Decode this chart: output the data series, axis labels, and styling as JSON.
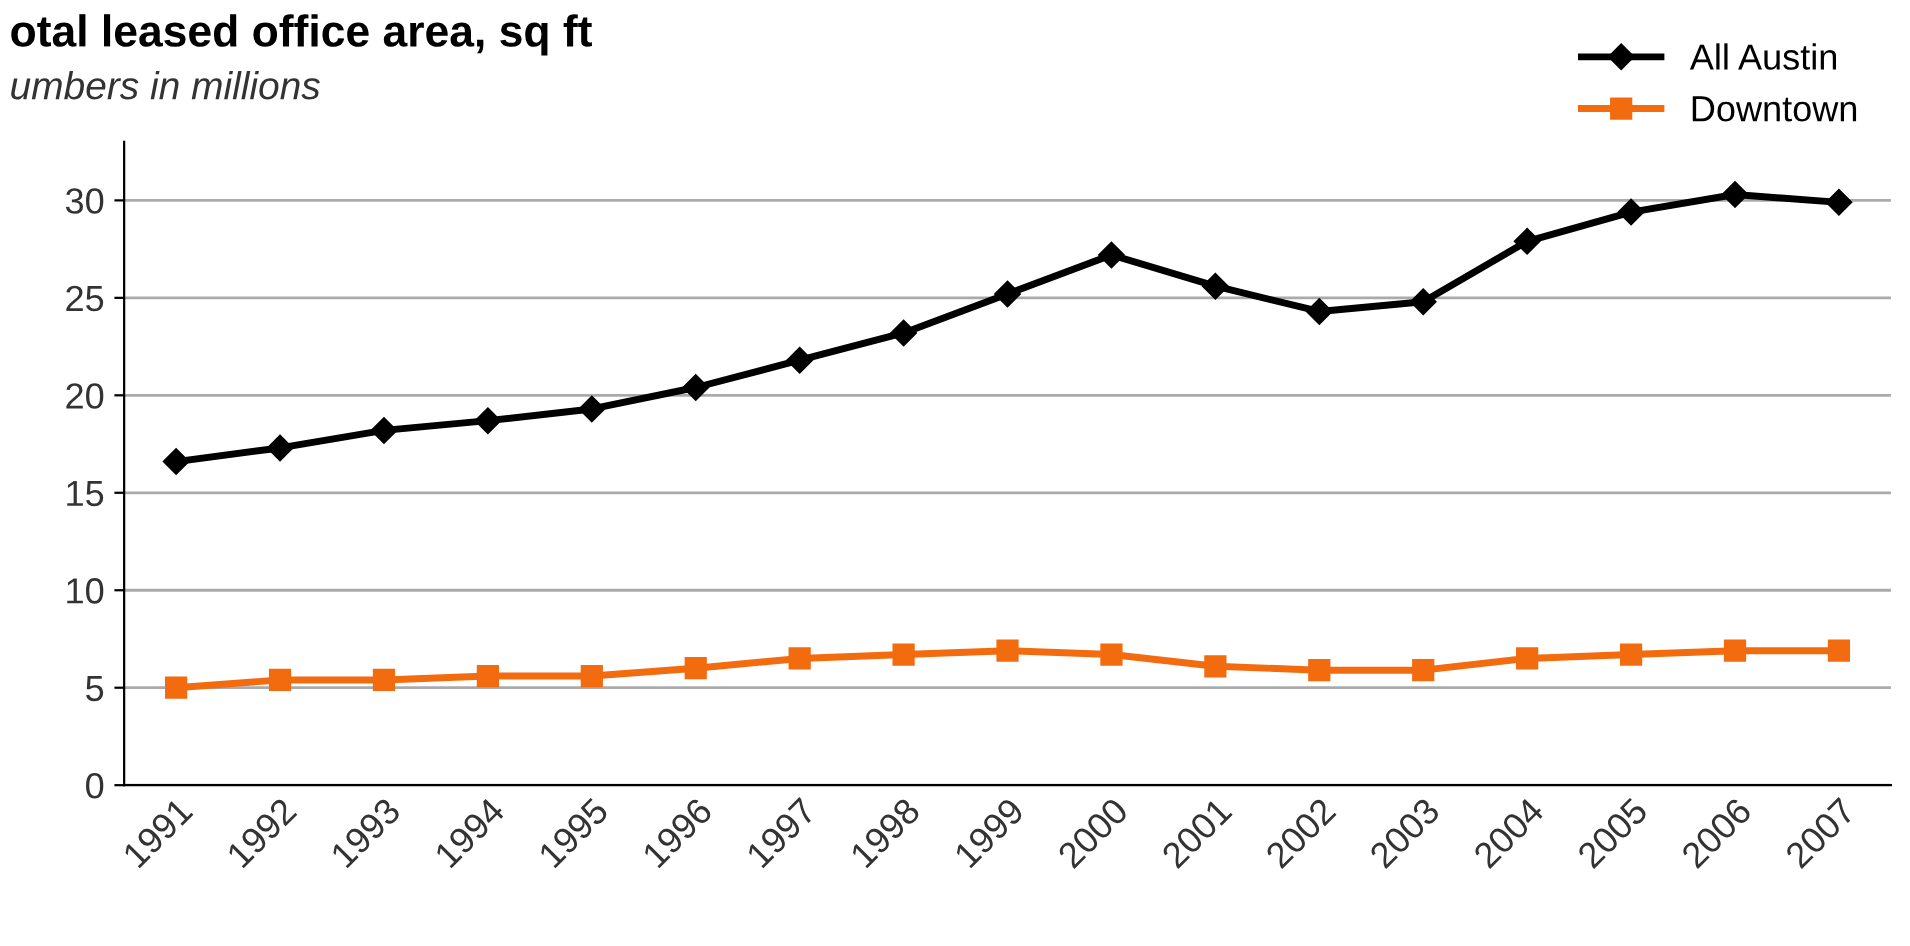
{
  "chart_data": {
    "type": "line",
    "title": "otal leased office area, sq ft",
    "subtitle": "umbers in millions",
    "categories": [
      "1991",
      "1992",
      "1993",
      "1994",
      "1995",
      "1996",
      "1997",
      "1998",
      "1999",
      "2000",
      "2001",
      "2002",
      "2003",
      "2004",
      "2005",
      "2006",
      "2007"
    ],
    "series": [
      {
        "name": "All Austin",
        "color": "#000000",
        "marker": "diamond",
        "values": [
          16.6,
          17.3,
          18.2,
          18.7,
          19.3,
          20.4,
          21.8,
          23.2,
          25.2,
          27.2,
          25.6,
          24.3,
          24.8,
          27.9,
          29.4,
          30.3,
          29.9
        ]
      },
      {
        "name": "Downtown",
        "color": "#f26b0f",
        "marker": "square",
        "values": [
          5.0,
          5.4,
          5.4,
          5.6,
          5.6,
          6.0,
          6.5,
          6.7,
          6.9,
          6.7,
          6.1,
          5.9,
          5.9,
          6.5,
          6.7,
          6.9,
          6.9
        ]
      }
    ],
    "ylim": [
      0,
      33
    ],
    "yticks": [
      0,
      5,
      10,
      15,
      20,
      25,
      30
    ],
    "grid": "y",
    "legend": "top right",
    "line_style": "solid"
  }
}
